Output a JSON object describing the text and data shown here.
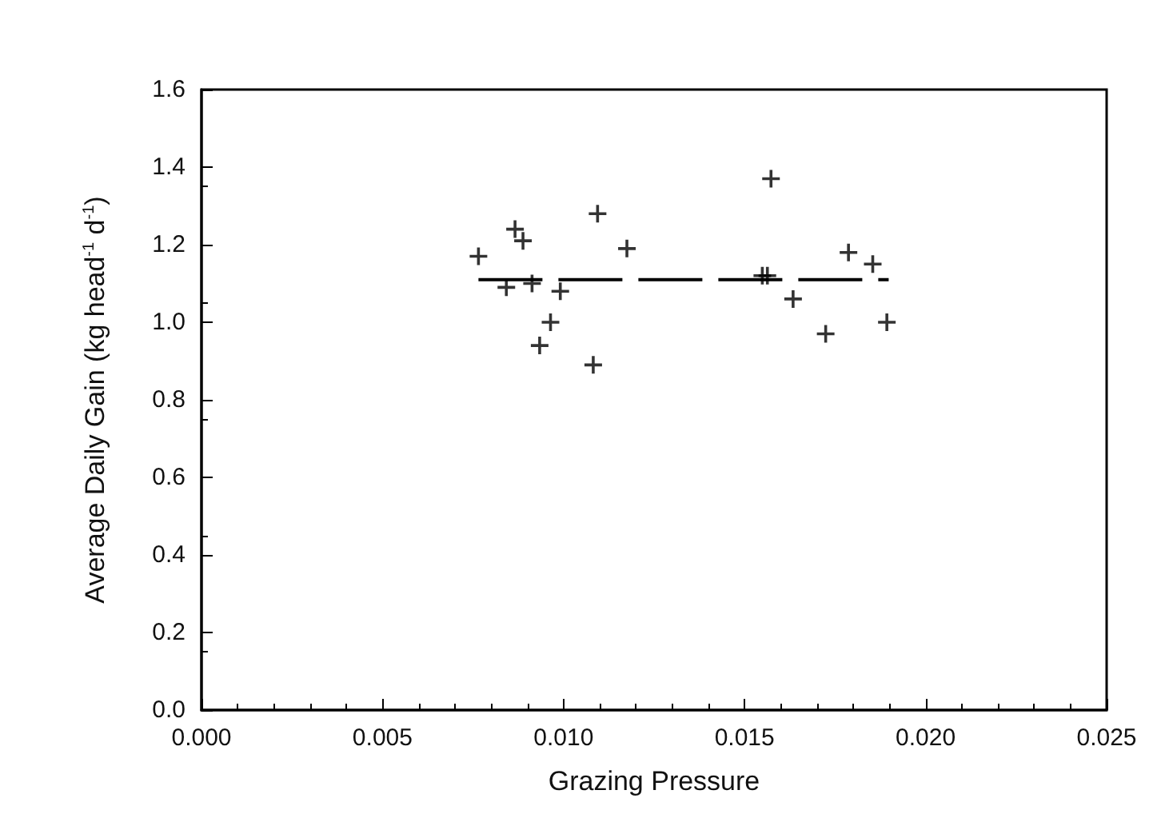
{
  "chart_data": {
    "type": "scatter",
    "xlabel": "Grazing Pressure",
    "ylabel": "Average Daily Gain (kg head$^{-1}$ d$^{-1}$)",
    "xlim": [
      0,
      0.025
    ],
    "ylim": [
      0,
      1.6
    ],
    "xticks": [
      {
        "value": 0,
        "label": "0.000"
      },
      {
        "value": 0.005,
        "label": "0.005"
      },
      {
        "value": 0.01,
        "label": "0.010"
      },
      {
        "value": 0.015,
        "label": "0.015"
      },
      {
        "value": 0.02,
        "label": "0.020"
      },
      {
        "value": 0.025,
        "label": "0.025"
      }
    ],
    "yticks": [
      {
        "value": 0,
        "label": "0.0"
      },
      {
        "value": 0.2,
        "label": "0.2"
      },
      {
        "value": 0.4,
        "label": "0.4"
      },
      {
        "value": 0.6,
        "label": "0.6"
      },
      {
        "value": 0.8,
        "label": "0.8"
      },
      {
        "value": 1.0,
        "label": "1.0"
      },
      {
        "value": 1.2,
        "label": "1.2"
      },
      {
        "value": 1.4,
        "label": "1.4"
      },
      {
        "value": 1.6,
        "label": "1.6"
      }
    ],
    "grid": false,
    "marker": "cross",
    "series": [
      {
        "color": "#000000",
        "x": [
          0.00765,
          0.00866,
          0.00888,
          0.00842,
          0.00913,
          0.00991,
          0.00964,
          0.00934,
          0.01094,
          0.01082,
          0.01175,
          0.01573,
          0.01549,
          0.01563,
          0.01634,
          0.01724,
          0.01787,
          0.01854,
          0.01893
        ],
        "values": [
          1.17,
          1.24,
          1.21,
          1.09,
          1.1,
          1.08,
          1.0,
          0.94,
          1.28,
          0.89,
          1.19,
          1.37,
          1.12,
          1.12,
          1.06,
          0.97,
          1.18,
          1.15,
          1.0
        ]
      },
      {
        "type": "line",
        "color": "#000000",
        "line_style": "dashed",
        "marker": "none",
        "x": [
          0.00765,
          0.01898
        ],
        "values": [
          1.11,
          1.11
        ]
      }
    ]
  }
}
